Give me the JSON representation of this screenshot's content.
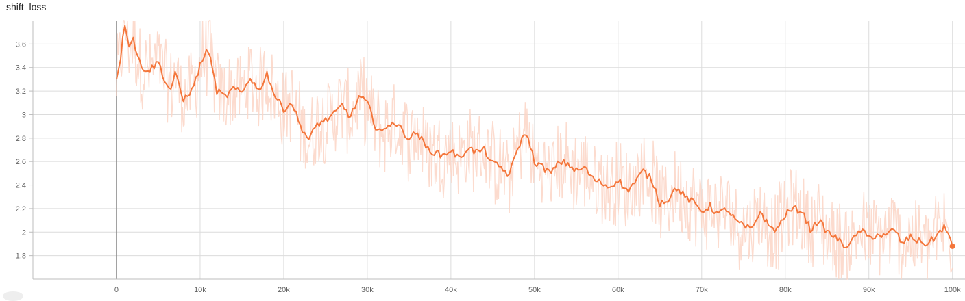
{
  "chart_data": {
    "type": "line",
    "title": "shift_loss",
    "xlabel": "",
    "ylabel": "",
    "xlim": [
      -10000,
      101500
    ],
    "ylim": [
      1.6,
      3.8
    ],
    "x_ticks": [
      0,
      10000,
      20000,
      30000,
      40000,
      50000,
      60000,
      70000,
      80000,
      90000,
      100000
    ],
    "x_tick_labels": [
      "0",
      "10k",
      "20k",
      "30k",
      "40k",
      "50k",
      "60k",
      "70k",
      "80k",
      "90k",
      "100k"
    ],
    "y_ticks": [
      1.8,
      2,
      2.2,
      2.4,
      2.6,
      2.8,
      3,
      3.2,
      3.4,
      3.6
    ],
    "y_tick_labels": [
      "1.8",
      "2",
      "2.2",
      "2.4",
      "2.6",
      "2.8",
      "3",
      "3.2",
      "3.4",
      "3.6"
    ],
    "grid": true,
    "series": [
      {
        "role": "smoothed",
        "color": "#f4763b",
        "x": [
          0,
          500,
          1000,
          1500,
          2000,
          2500,
          3000,
          4000,
          5000,
          5500,
          6000,
          6500,
          7000,
          8000,
          8500,
          9000,
          9500,
          10000,
          10500,
          11000,
          12000,
          13000,
          14000,
          15000,
          16000,
          17000,
          18000,
          19000,
          20000,
          21000,
          22000,
          22500,
          23000,
          24000,
          25000,
          26000,
          27000,
          28000,
          29000,
          30000,
          31000,
          32000,
          33000,
          34000,
          35000,
          36000,
          37000,
          38000,
          39000,
          40000,
          41000,
          42000,
          43000,
          44000,
          45000,
          46000,
          47000,
          48000,
          49000,
          50000,
          51000,
          52000,
          53000,
          54000,
          55000,
          56000,
          57000,
          58000,
          59000,
          60000,
          61000,
          62000,
          63000,
          64000,
          65000,
          66000,
          67000,
          68000,
          69000,
          70000,
          71000,
          72000,
          73000,
          74000,
          75000,
          76000,
          77000,
          78000,
          79000,
          80000,
          81000,
          82000,
          83000,
          84000,
          85000,
          86000,
          87000,
          88000,
          89000,
          90000,
          91000,
          92000,
          93000,
          94000,
          95000,
          96000,
          97000,
          98000,
          99000,
          100000
        ],
        "y": [
          3.3,
          3.5,
          3.78,
          3.6,
          3.65,
          3.5,
          3.4,
          3.38,
          3.45,
          3.35,
          3.25,
          3.22,
          3.35,
          3.12,
          3.18,
          3.2,
          3.3,
          3.42,
          3.5,
          3.55,
          3.2,
          3.15,
          3.22,
          3.18,
          3.32,
          3.2,
          3.35,
          3.15,
          3.05,
          3.1,
          2.9,
          2.85,
          2.78,
          2.92,
          2.95,
          3.0,
          3.08,
          2.98,
          3.15,
          3.1,
          2.9,
          2.85,
          2.95,
          2.88,
          2.8,
          2.85,
          2.72,
          2.68,
          2.65,
          2.7,
          2.62,
          2.72,
          2.68,
          2.7,
          2.58,
          2.55,
          2.48,
          2.72,
          2.85,
          2.6,
          2.55,
          2.5,
          2.6,
          2.58,
          2.52,
          2.55,
          2.45,
          2.42,
          2.38,
          2.45,
          2.35,
          2.42,
          2.52,
          2.45,
          2.25,
          2.28,
          2.38,
          2.3,
          2.25,
          2.18,
          2.22,
          2.15,
          2.2,
          2.1,
          2.05,
          2.02,
          2.18,
          2.05,
          2.02,
          2.15,
          2.2,
          2.18,
          2.02,
          2.1,
          2.0,
          1.96,
          1.88,
          1.92,
          2.02,
          1.95,
          1.98,
          1.96,
          2.03,
          1.9,
          1.96,
          1.92,
          1.9,
          1.96,
          2.05,
          1.88
        ]
      }
    ]
  }
}
